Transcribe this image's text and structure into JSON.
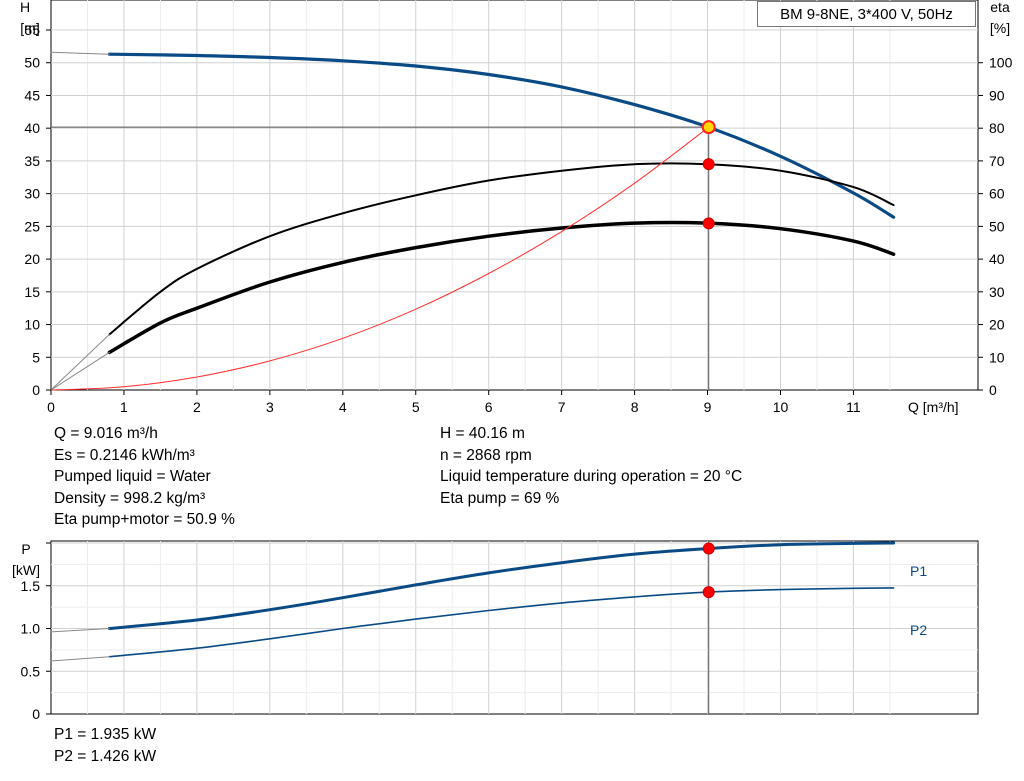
{
  "title": "BM 9-8NE, 3*400 V, 50Hz",
  "chart_data": [
    {
      "type": "line",
      "name": "QH",
      "xlabel": "Q [m³/h]",
      "ylabel_left": [
        "H",
        "[m]"
      ],
      "ylabel_right": [
        "eta",
        "[%]"
      ],
      "xlim": [
        0,
        12.2
      ],
      "ylim_left": [
        0,
        55
      ],
      "ylim_right": [
        0,
        110
      ],
      "xticks": [
        0,
        1,
        2,
        3,
        4,
        5,
        6,
        7,
        8,
        9,
        10,
        11
      ],
      "yticks_left": [
        0,
        5,
        10,
        15,
        20,
        25,
        30,
        35,
        40,
        45,
        50,
        55
      ],
      "yticks_right": [
        0,
        10,
        20,
        30,
        40,
        50,
        60,
        70,
        80,
        90,
        100
      ],
      "grid": true,
      "series": [
        {
          "id": "head",
          "axis": "left",
          "color": "#0a4b86",
          "width": 3.2,
          "x": [
            0.8,
            2,
            3,
            4,
            5,
            6,
            7,
            8,
            9,
            10,
            11,
            11.55
          ],
          "y": [
            51.3,
            51.1,
            50.8,
            50.3,
            49.5,
            48.2,
            46.3,
            43.6,
            40.2,
            35.7,
            30.1,
            26.4
          ]
        },
        {
          "id": "head-extension",
          "axis": "left",
          "color": "#888888",
          "width": 1,
          "x": [
            0,
            0.8
          ],
          "y": [
            51.6,
            51.3
          ]
        },
        {
          "id": "eta-pump",
          "axis": "right",
          "color": "#000000",
          "width": 2,
          "x": [
            0.8,
            1.5,
            2,
            3,
            4,
            5,
            6,
            7,
            8,
            9,
            10,
            11,
            11.55
          ],
          "y": [
            17,
            30,
            37,
            47,
            54,
            59.5,
            64,
            67,
            69,
            69,
            67,
            62,
            56.5
          ]
        },
        {
          "id": "eta-pump-motor",
          "axis": "right",
          "color": "#000000",
          "width": 3.5,
          "x": [
            0.8,
            1.5,
            2,
            3,
            4,
            5,
            6,
            7,
            8,
            9,
            10,
            11,
            11.55
          ],
          "y": [
            11.5,
            20.5,
            25,
            33,
            39,
            43.5,
            47,
            49.5,
            51,
            51,
            49.3,
            45.5,
            41.5
          ]
        },
        {
          "id": "eta-extension-1",
          "axis": "right",
          "color": "#888888",
          "width": 1,
          "x": [
            0,
            0.8
          ],
          "y": [
            0,
            17
          ]
        },
        {
          "id": "eta-extension-2",
          "axis": "right",
          "color": "#888888",
          "width": 1,
          "x": [
            0,
            0.8
          ],
          "y": [
            0,
            11.5
          ]
        },
        {
          "id": "system-curve",
          "axis": "left",
          "color": "#ff3030",
          "width": 1,
          "x": [
            0,
            1,
            2,
            3,
            4,
            5,
            6,
            7,
            8,
            9.016
          ],
          "y": [
            0,
            0.5,
            1.98,
            4.45,
            7.9,
            12.35,
            17.8,
            24.2,
            31.6,
            40.16
          ]
        }
      ],
      "operating_point": {
        "x": 9.016,
        "y": 40.16
      },
      "duty_markers": [
        {
          "x": 9.016,
          "axis": "right",
          "y": 69
        },
        {
          "x": 9.016,
          "axis": "right",
          "y": 50.9
        }
      ]
    },
    {
      "type": "line",
      "name": "Power",
      "xlim": [
        0,
        12.2
      ],
      "ylim": [
        0,
        2.0
      ],
      "ylabel": [
        "P",
        "[kW]"
      ],
      "yticks": [
        0,
        0.5,
        1.0,
        1.5
      ],
      "ytick_labels": [
        "0",
        "0.5",
        "1.0",
        "1.5"
      ],
      "grid": true,
      "series": [
        {
          "id": "P1",
          "name": "P1",
          "color": "#0a4b86",
          "width": 3,
          "x": [
            0.8,
            2,
            3,
            4,
            5,
            6,
            7,
            8,
            9,
            10,
            11,
            11.55
          ],
          "y": [
            1.0,
            1.1,
            1.22,
            1.36,
            1.51,
            1.65,
            1.77,
            1.87,
            1.935,
            1.98,
            1.995,
            2.0
          ]
        },
        {
          "id": "P2",
          "name": "P2",
          "color": "#0a4b86",
          "width": 1.6,
          "x": [
            0.8,
            2,
            3,
            4,
            5,
            6,
            7,
            8,
            9,
            10,
            11,
            11.55
          ],
          "y": [
            0.67,
            0.77,
            0.88,
            1.0,
            1.11,
            1.21,
            1.3,
            1.37,
            1.426,
            1.455,
            1.47,
            1.475
          ]
        },
        {
          "id": "P1-extension",
          "color": "#888888",
          "width": 1,
          "x": [
            0,
            0.8
          ],
          "y": [
            0.96,
            1.0
          ]
        },
        {
          "id": "P2-extension",
          "color": "#888888",
          "width": 1,
          "x": [
            0,
            0.8
          ],
          "y": [
            0.62,
            0.67
          ]
        }
      ],
      "markers": [
        {
          "x": 9.016,
          "y": 1.935
        },
        {
          "x": 9.016,
          "y": 1.426
        }
      ]
    }
  ],
  "info_left": [
    "Q = 9.016 m³/h",
    "Es = 0.2146 kWh/m³",
    "Pumped liquid = Water",
    "Density = 998.2 kg/m³",
    "Eta pump+motor = 50.9 %"
  ],
  "info_right": [
    "H = 40.16 m",
    "n = 2868 rpm",
    "Liquid temperature during operation = 20 °C",
    "Eta pump = 69 %"
  ],
  "power_values": [
    "P1 = 1.935 kW",
    "P2 = 1.426 kW"
  ]
}
